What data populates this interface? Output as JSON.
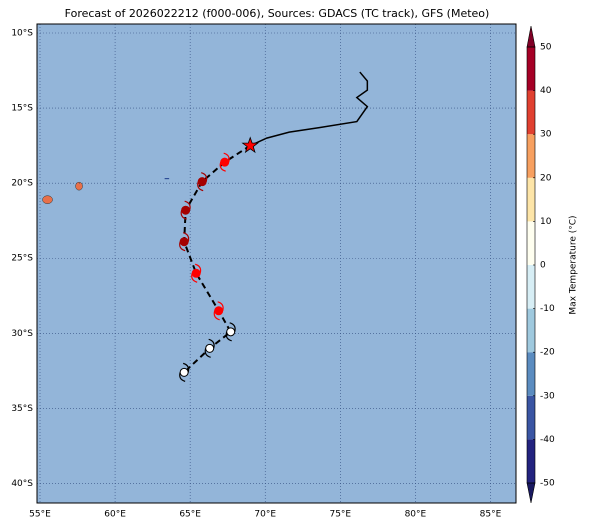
{
  "chart_data": {
    "type": "map",
    "title": "Forecast of 2026022212 (f000-006), Sources: GDACS (TC track), GFS (Meteo)",
    "colorbar_label": "Max Temperature (°C)",
    "lonlim": [
      54.8,
      86.7
    ],
    "latlim": [
      -41.3,
      -9.4
    ],
    "xticks": [
      {
        "value": 55,
        "label": "55°E"
      },
      {
        "value": 60,
        "label": "60°E"
      },
      {
        "value": 65,
        "label": "65°E"
      },
      {
        "value": 70,
        "label": "70°E"
      },
      {
        "value": 75,
        "label": "75°E"
      },
      {
        "value": 80,
        "label": "80°E"
      },
      {
        "value": 85,
        "label": "85°E"
      }
    ],
    "yticks": [
      {
        "value": -10,
        "label": "10°S"
      },
      {
        "value": -15,
        "label": "15°S"
      },
      {
        "value": -20,
        "label": "20°S"
      },
      {
        "value": -25,
        "label": "25°S"
      },
      {
        "value": -30,
        "label": "30°S"
      },
      {
        "value": -35,
        "label": "35°S"
      },
      {
        "value": -40,
        "label": "40°S"
      }
    ],
    "clim": [
      -50,
      50
    ],
    "cticks": [
      -50,
      -40,
      -30,
      -20,
      -10,
      0,
      10,
      20,
      30,
      40,
      50
    ],
    "ccolors": [
      "#23237f",
      "#3a55a3",
      "#5b8cc0",
      "#9fc9de",
      "#d7eef5",
      "#fffff0",
      "#fde5a8",
      "#f7a060",
      "#e04030",
      "#a50026"
    ],
    "cextend": [
      "#191960",
      "#800026"
    ],
    "ocean_color": "#93b5d9",
    "grid": true,
    "track_history": {
      "lon": [
        76.3,
        76.8,
        76.8,
        76.1,
        76.8,
        76.1,
        73.6,
        71.6,
        70.1,
        69.0
      ],
      "lat": [
        -12.6,
        -13.2,
        -13.8,
        -14.3,
        -14.9,
        -15.9,
        -16.3,
        -16.6,
        -17.0,
        -17.5
      ]
    },
    "current": {
      "lon": 69.0,
      "lat": -17.5
    },
    "forecast": {
      "lon": [
        67.3,
        65.8,
        64.7,
        64.6,
        65.4,
        66.9,
        67.7,
        66.3,
        64.6
      ],
      "lat": [
        -18.6,
        -19.9,
        -21.8,
        -23.9,
        -26.0,
        -28.5,
        -29.9,
        -31.0,
        -32.6
      ],
      "colors": [
        "#ff0000",
        "#a50000",
        "#a50000",
        "#a50000",
        "#ff0000",
        "#ff0000",
        "#ffffff",
        "#ffffff",
        "#ffffff"
      ]
    }
  }
}
